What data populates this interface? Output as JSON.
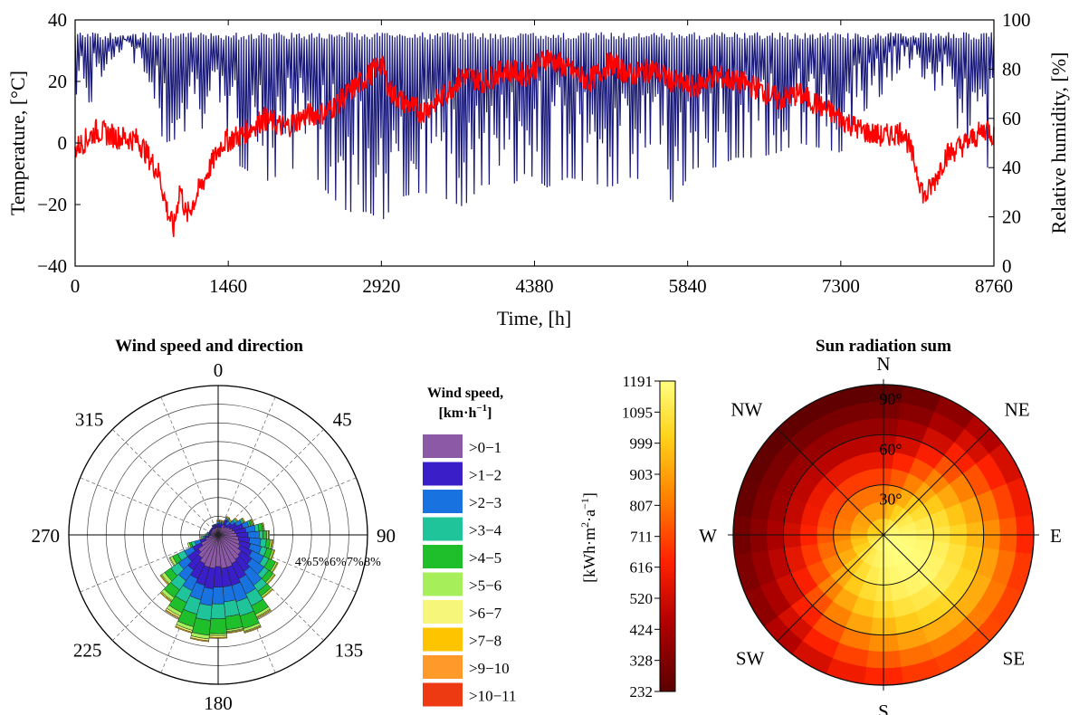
{
  "chart_data": [
    {
      "type": "line",
      "xlabel": "Time, [h]",
      "ylabel": "Temperature, [°C]",
      "y2label": "Relative humidity, [%]",
      "xlim": [
        0,
        8760
      ],
      "ylim": [
        -40,
        40
      ],
      "y2lim": [
        0,
        100
      ],
      "xticks": [
        0,
        1460,
        2920,
        4380,
        5840,
        7300,
        8760
      ],
      "yticks": [
        -40,
        -20,
        0,
        20,
        40
      ],
      "y2ticks": [
        0,
        20,
        40,
        60,
        80,
        100
      ],
      "grid": false,
      "colors": {
        "temperature": "#ff0000",
        "humidity": "#1a1a7a"
      },
      "series": [
        {
          "axis": "left",
          "x": [
            0,
            200,
            400,
            600,
            800,
            880,
            940,
            1000,
            1060,
            1200,
            1400,
            1600,
            1800,
            2000,
            2200,
            2400,
            2600,
            2800,
            2920,
            3000,
            3100,
            3300,
            3500,
            3700,
            3900,
            4100,
            4300,
            4500,
            4700,
            4900,
            5100,
            5300,
            5500,
            5700,
            5900,
            6100,
            6300,
            6500,
            6700,
            6900,
            7100,
            7300,
            7500,
            7700,
            7900,
            8000,
            8100,
            8200,
            8300,
            8500,
            8700,
            8760
          ],
          "values": [
            -2,
            4,
            2,
            1,
            -10,
            -22,
            -28,
            -14,
            -24,
            -14,
            0,
            3,
            8,
            5,
            9,
            10,
            16,
            22,
            26,
            17,
            14,
            10,
            15,
            22,
            20,
            24,
            22,
            28,
            24,
            20,
            26,
            22,
            24,
            20,
            18,
            22,
            20,
            18,
            14,
            16,
            12,
            8,
            4,
            2,
            4,
            -6,
            -18,
            -12,
            -4,
            0,
            5,
            2
          ]
        },
        {
          "axis": "right",
          "x": [
            0,
            150,
            300,
            500,
            650,
            750,
            850,
            1000,
            1100,
            1250,
            1400,
            1600,
            1800,
            2000,
            2200,
            2400,
            2600,
            2800,
            2920,
            3100,
            3300,
            3500,
            3700,
            3900,
            4100,
            4300,
            4500,
            4700,
            4900,
            5100,
            5300,
            5500,
            5700,
            5900,
            6100,
            6300,
            6500,
            6700,
            6900,
            7100,
            7300,
            7500,
            7700,
            7900,
            8100,
            8300,
            8500,
            8700,
            8760
          ],
          "min": [
            70,
            66,
            82,
            90,
            72,
            62,
            50,
            52,
            58,
            55,
            44,
            40,
            34,
            38,
            42,
            30,
            22,
            22,
            18,
            28,
            30,
            28,
            24,
            34,
            30,
            38,
            32,
            36,
            34,
            32,
            36,
            34,
            26,
            40,
            40,
            44,
            44,
            46,
            50,
            48,
            46,
            62,
            70,
            82,
            76,
            66,
            48,
            40,
            50
          ],
          "max": [
            95,
            95,
            95,
            95,
            95,
            95,
            95,
            95,
            95,
            95,
            95,
            95,
            95,
            95,
            95,
            95,
            95,
            95,
            95,
            95,
            95,
            95,
            95,
            95,
            95,
            95,
            95,
            95,
            95,
            95,
            95,
            95,
            95,
            95,
            95,
            95,
            95,
            95,
            95,
            95,
            95,
            95,
            95,
            95,
            95,
            95,
            95,
            95,
            95
          ]
        }
      ]
    },
    {
      "type": "polar-bar",
      "title": "Wind speed and direction",
      "angle_ticks": [
        "0",
        "45",
        "90",
        "135",
        "180",
        "225",
        "270",
        "315"
      ],
      "radial_tick_labels": [
        "4%",
        "5%",
        "6%",
        "7%",
        "8%"
      ],
      "rlim": [
        0,
        8
      ],
      "legend_title": [
        "Wind speed,",
        "[km·h",
        "−1",
        "]"
      ],
      "legend_placement": "right",
      "directions_deg": [
        0,
        10,
        20,
        30,
        40,
        50,
        60,
        70,
        80,
        90,
        100,
        110,
        120,
        130,
        140,
        150,
        160,
        170,
        180,
        190,
        200,
        210,
        220,
        230,
        240,
        250,
        260,
        270,
        280,
        290,
        300,
        310,
        320,
        330,
        340,
        350
      ],
      "bins": [
        {
          "label": ">0−1",
          "color": "#8c59a6"
        },
        {
          "label": ">1−2",
          "color": "#3a1fc8"
        },
        {
          "label": ">2−3",
          "color": "#1873e0"
        },
        {
          "label": ">3−4",
          "color": "#1fc49a"
        },
        {
          "label": ">4−5",
          "color": "#1fbf2c"
        },
        {
          "label": ">5−6",
          "color": "#a6ee5a"
        },
        {
          "label": ">6−7",
          "color": "#f6f67a"
        },
        {
          "label": ">7−8",
          "color": "#ffc400"
        },
        {
          "label": ">9−10",
          "color": "#ff9a2a"
        },
        {
          "label": ">10−11",
          "color": "#ee3a12"
        }
      ],
      "cumulative": [
        [
          0.4,
          0.6,
          0.7,
          0.7,
          0.7,
          0.75,
          0.75,
          0.8,
          0.8,
          0.8
        ],
        [
          0.4,
          0.6,
          0.7,
          0.7,
          0.7,
          0.75,
          0.75,
          0.8,
          0.8,
          0.8
        ],
        [
          0.4,
          0.6,
          0.7,
          0.7,
          0.7,
          0.75,
          0.75,
          0.8,
          0.8,
          0.8
        ],
        [
          0.6,
          0.9,
          1.0,
          1.0,
          1.0,
          1.05,
          1.05,
          1.1,
          1.1,
          1.1
        ],
        [
          0.5,
          0.7,
          0.9,
          0.95,
          0.95,
          1.0,
          1.0,
          1.05,
          1.05,
          1.05
        ],
        [
          0.6,
          0.9,
          1.1,
          1.2,
          1.2,
          1.25,
          1.25,
          1.3,
          1.3,
          1.3
        ],
        [
          0.7,
          1.1,
          1.4,
          1.5,
          1.5,
          1.55,
          1.55,
          1.6,
          1.6,
          1.6
        ],
        [
          0.8,
          1.4,
          1.7,
          1.8,
          1.9,
          1.95,
          1.95,
          2.0,
          2.0,
          2.0
        ],
        [
          0.9,
          1.5,
          2.0,
          2.2,
          2.4,
          2.45,
          2.45,
          2.5,
          2.5,
          2.5
        ],
        [
          1.0,
          1.6,
          2.2,
          2.4,
          2.6,
          2.7,
          2.7,
          2.75,
          2.75,
          2.75
        ],
        [
          1.1,
          1.7,
          2.3,
          2.6,
          2.8,
          2.9,
          2.9,
          2.95,
          2.95,
          2.95
        ],
        [
          1.2,
          1.8,
          2.4,
          2.7,
          3.0,
          3.1,
          3.1,
          3.15,
          3.15,
          3.15
        ],
        [
          1.3,
          2.0,
          2.7,
          3.0,
          3.4,
          3.5,
          3.5,
          3.55,
          3.55,
          3.55
        ],
        [
          1.5,
          2.2,
          3.0,
          3.3,
          3.6,
          3.7,
          3.7,
          3.75,
          3.75,
          3.75
        ],
        [
          1.6,
          2.4,
          3.3,
          3.7,
          4.0,
          4.1,
          4.1,
          4.15,
          4.15,
          4.15
        ],
        [
          1.7,
          2.6,
          3.5,
          4.2,
          4.7,
          4.85,
          4.9,
          4.95,
          4.95,
          4.95
        ],
        [
          1.8,
          2.8,
          3.7,
          4.5,
          5.2,
          5.35,
          5.4,
          5.45,
          5.45,
          5.45
        ],
        [
          1.8,
          2.8,
          3.6,
          4.4,
          5.1,
          5.2,
          5.25,
          5.3,
          5.3,
          5.3
        ],
        [
          1.7,
          2.8,
          3.7,
          4.5,
          5.3,
          5.4,
          5.5,
          5.55,
          5.55,
          5.55
        ],
        [
          1.8,
          2.9,
          3.8,
          4.6,
          5.4,
          5.6,
          5.7,
          5.75,
          5.75,
          5.75
        ],
        [
          1.8,
          2.8,
          3.6,
          4.4,
          5.1,
          5.3,
          5.4,
          5.45,
          5.45,
          5.45
        ],
        [
          1.7,
          2.6,
          3.3,
          4.0,
          4.6,
          4.8,
          4.9,
          4.95,
          4.95,
          4.95
        ],
        [
          1.5,
          2.3,
          3.0,
          3.6,
          4.1,
          4.3,
          4.35,
          4.4,
          4.4,
          4.4
        ],
        [
          1.3,
          2.0,
          2.6,
          3.1,
          3.5,
          3.7,
          3.75,
          3.8,
          3.8,
          3.8
        ],
        [
          1.0,
          1.5,
          2.0,
          2.4,
          2.7,
          2.85,
          2.9,
          2.9,
          2.9,
          2.9
        ],
        [
          0.7,
          1.0,
          1.3,
          1.5,
          1.6,
          1.7,
          1.7,
          1.7,
          1.7,
          1.7
        ],
        [
          0.5,
          0.7,
          0.8,
          0.9,
          0.9,
          0.95,
          0.95,
          0.95,
          0.95,
          0.95
        ],
        [
          0.4,
          0.5,
          0.6,
          0.65,
          0.65,
          0.7,
          0.7,
          0.7,
          0.7,
          0.7
        ],
        [
          0.4,
          0.5,
          0.6,
          0.6,
          0.6,
          0.6,
          0.6,
          0.6,
          0.6,
          0.6
        ],
        [
          0.4,
          0.5,
          0.5,
          0.5,
          0.5,
          0.5,
          0.5,
          0.5,
          0.5,
          0.5
        ],
        [
          0.4,
          0.5,
          0.5,
          0.5,
          0.5,
          0.5,
          0.5,
          0.5,
          0.5,
          0.5
        ],
        [
          0.4,
          0.5,
          0.5,
          0.5,
          0.5,
          0.5,
          0.5,
          0.5,
          0.5,
          0.5
        ],
        [
          0.4,
          0.5,
          0.5,
          0.5,
          0.5,
          0.5,
          0.5,
          0.5,
          0.5,
          0.5
        ],
        [
          0.4,
          0.55,
          0.6,
          0.6,
          0.6,
          0.6,
          0.6,
          0.6,
          0.6,
          0.6
        ],
        [
          0.4,
          0.55,
          0.6,
          0.6,
          0.6,
          0.6,
          0.6,
          0.6,
          0.6,
          0.6
        ],
        [
          0.4,
          0.55,
          0.6,
          0.6,
          0.6,
          0.6,
          0.6,
          0.6,
          0.6,
          0.6
        ]
      ]
    },
    {
      "type": "heatmap",
      "subtype": "polar",
      "title": "Sun radiation sum",
      "compass_labels": [
        "N",
        "NE",
        "E",
        "SE",
        "S",
        "SW",
        "W",
        "NW"
      ],
      "ring_labels": [
        "30°",
        "60°",
        "90°"
      ],
      "colorbar_label": [
        "[kWh·m",
        "2",
        "·a",
        "−1",
        "]"
      ],
      "colorbar_ticks": [
        232,
        328,
        424,
        520,
        616,
        711,
        807,
        903,
        999,
        1095,
        1191
      ],
      "clim": [
        232,
        1191
      ],
      "rings_deg": [
        10,
        20,
        30,
        40,
        50,
        60,
        70,
        80,
        90
      ],
      "sectors_deg": [
        0,
        15,
        30,
        45,
        60,
        75,
        90,
        105,
        120,
        135,
        150,
        165,
        180,
        195,
        210,
        225,
        240,
        255,
        270,
        285,
        300,
        315,
        330,
        345
      ],
      "values": [
        [
          1000,
          1050,
          1100,
          1130,
          1150,
          1165,
          1175,
          1185,
          1190,
          1191,
          1190,
          1185,
          1175,
          1165,
          1150,
          1130,
          1100,
          1070,
          1040,
          1015,
          1000,
          995,
          995,
          998
        ],
        [
          900,
          960,
          1020,
          1070,
          1110,
          1140,
          1160,
          1175,
          1185,
          1190,
          1185,
          1175,
          1160,
          1140,
          1110,
          1070,
          1020,
          980,
          945,
          920,
          905,
          898,
          898,
          900
        ],
        [
          800,
          860,
          930,
          1000,
          1060,
          1110,
          1140,
          1160,
          1175,
          1180,
          1175,
          1160,
          1140,
          1110,
          1060,
          1000,
          930,
          880,
          840,
          815,
          800,
          795,
          795,
          797
        ],
        [
          690,
          750,
          830,
          920,
          1000,
          1060,
          1100,
          1130,
          1150,
          1160,
          1150,
          1130,
          1100,
          1060,
          1000,
          920,
          830,
          780,
          740,
          710,
          695,
          690,
          688,
          689
        ],
        [
          580,
          640,
          730,
          830,
          920,
          990,
          1040,
          1080,
          1100,
          1110,
          1100,
          1080,
          1040,
          990,
          920,
          830,
          730,
          680,
          630,
          600,
          585,
          578,
          576,
          578
        ],
        [
          470,
          530,
          620,
          730,
          830,
          910,
          960,
          1000,
          1030,
          1040,
          1030,
          1000,
          960,
          910,
          830,
          730,
          620,
          570,
          520,
          490,
          475,
          468,
          465,
          467
        ],
        [
          380,
          430,
          520,
          630,
          730,
          810,
          860,
          900,
          930,
          940,
          930,
          900,
          860,
          810,
          730,
          630,
          520,
          470,
          430,
          400,
          385,
          378,
          375,
          377
        ],
        [
          310,
          350,
          430,
          530,
          630,
          700,
          750,
          790,
          810,
          820,
          810,
          790,
          750,
          700,
          630,
          530,
          430,
          385,
          350,
          325,
          312,
          306,
          304,
          306
        ],
        [
          250,
          290,
          360,
          450,
          530,
          600,
          640,
          680,
          700,
          710,
          700,
          680,
          640,
          600,
          530,
          450,
          360,
          320,
          290,
          265,
          255,
          250,
          248,
          249
        ]
      ]
    }
  ]
}
